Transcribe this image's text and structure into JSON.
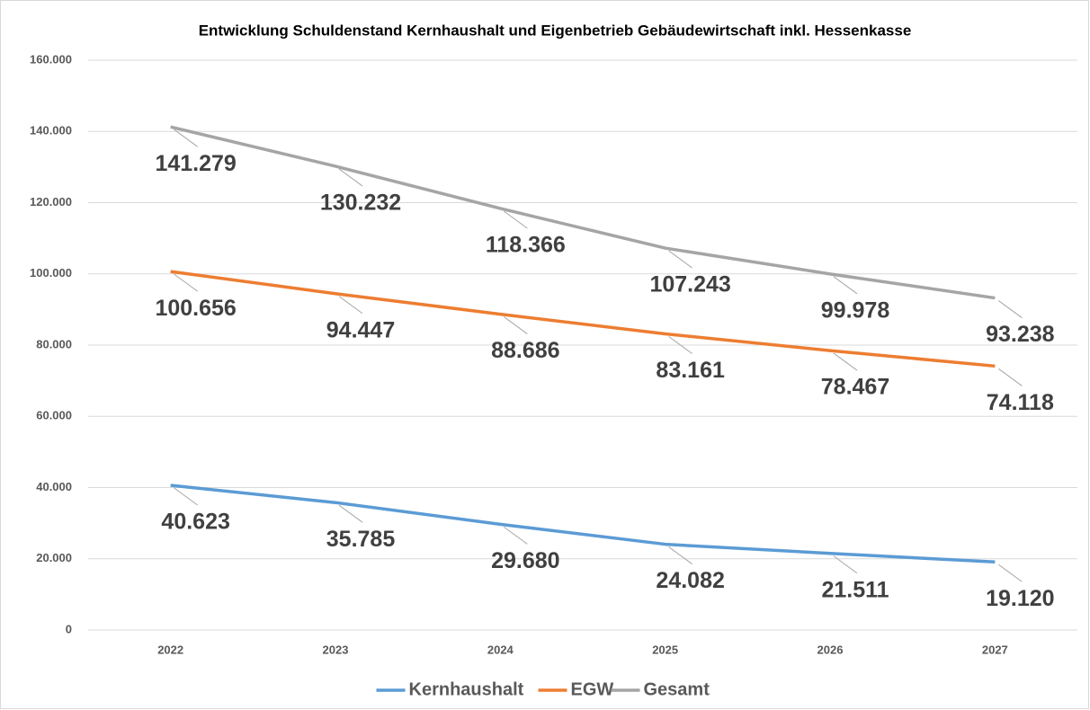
{
  "chart_data": {
    "type": "line",
    "title": "Entwicklung Schuldenstand Kernhaushalt und Eigenbetrieb Gebäudewirtschaft inkl. Hessenkasse",
    "categories": [
      "2022",
      "2023",
      "2024",
      "2025",
      "2026",
      "2027"
    ],
    "series": [
      {
        "name": "Kernhaushalt",
        "color": "#5b9bd5",
        "values": [
          40623,
          35785,
          29680,
          24082,
          21511,
          19120
        ],
        "value_labels": [
          "40.623",
          "35.785",
          "29.680",
          "24.082",
          "21.511",
          "19.120"
        ]
      },
      {
        "name": "EGW",
        "color": "#ed7d31",
        "values": [
          100656,
          94447,
          88686,
          83161,
          78467,
          74118
        ],
        "value_labels": [
          "100.656",
          "94.447",
          "88.686",
          "83.161",
          "78.467",
          "74.118"
        ]
      },
      {
        "name": "Gesamt",
        "color": "#a5a5a5",
        "values": [
          141279,
          130232,
          118366,
          107243,
          99978,
          93238
        ],
        "value_labels": [
          "141.279",
          "130.232",
          "118.366",
          "107.243",
          "99.978",
          "93.238"
        ]
      }
    ],
    "ylim": [
      0,
      160000
    ],
    "yticks": [
      0,
      {
        "value": 20000,
        "label": "20.000"
      },
      {
        "value": 40000,
        "label": "40.000"
      },
      {
        "value": 60000,
        "label": "60.000"
      },
      {
        "value": 80000,
        "label": "80.000"
      },
      {
        "value": 100000,
        "label": "100.000"
      },
      {
        "value": 120000,
        "label": "120.000"
      },
      {
        "value": 140000,
        "label": "140.000"
      },
      {
        "value": 160000,
        "label": "160.000"
      }
    ],
    "grid": true,
    "legend": "bottom"
  }
}
